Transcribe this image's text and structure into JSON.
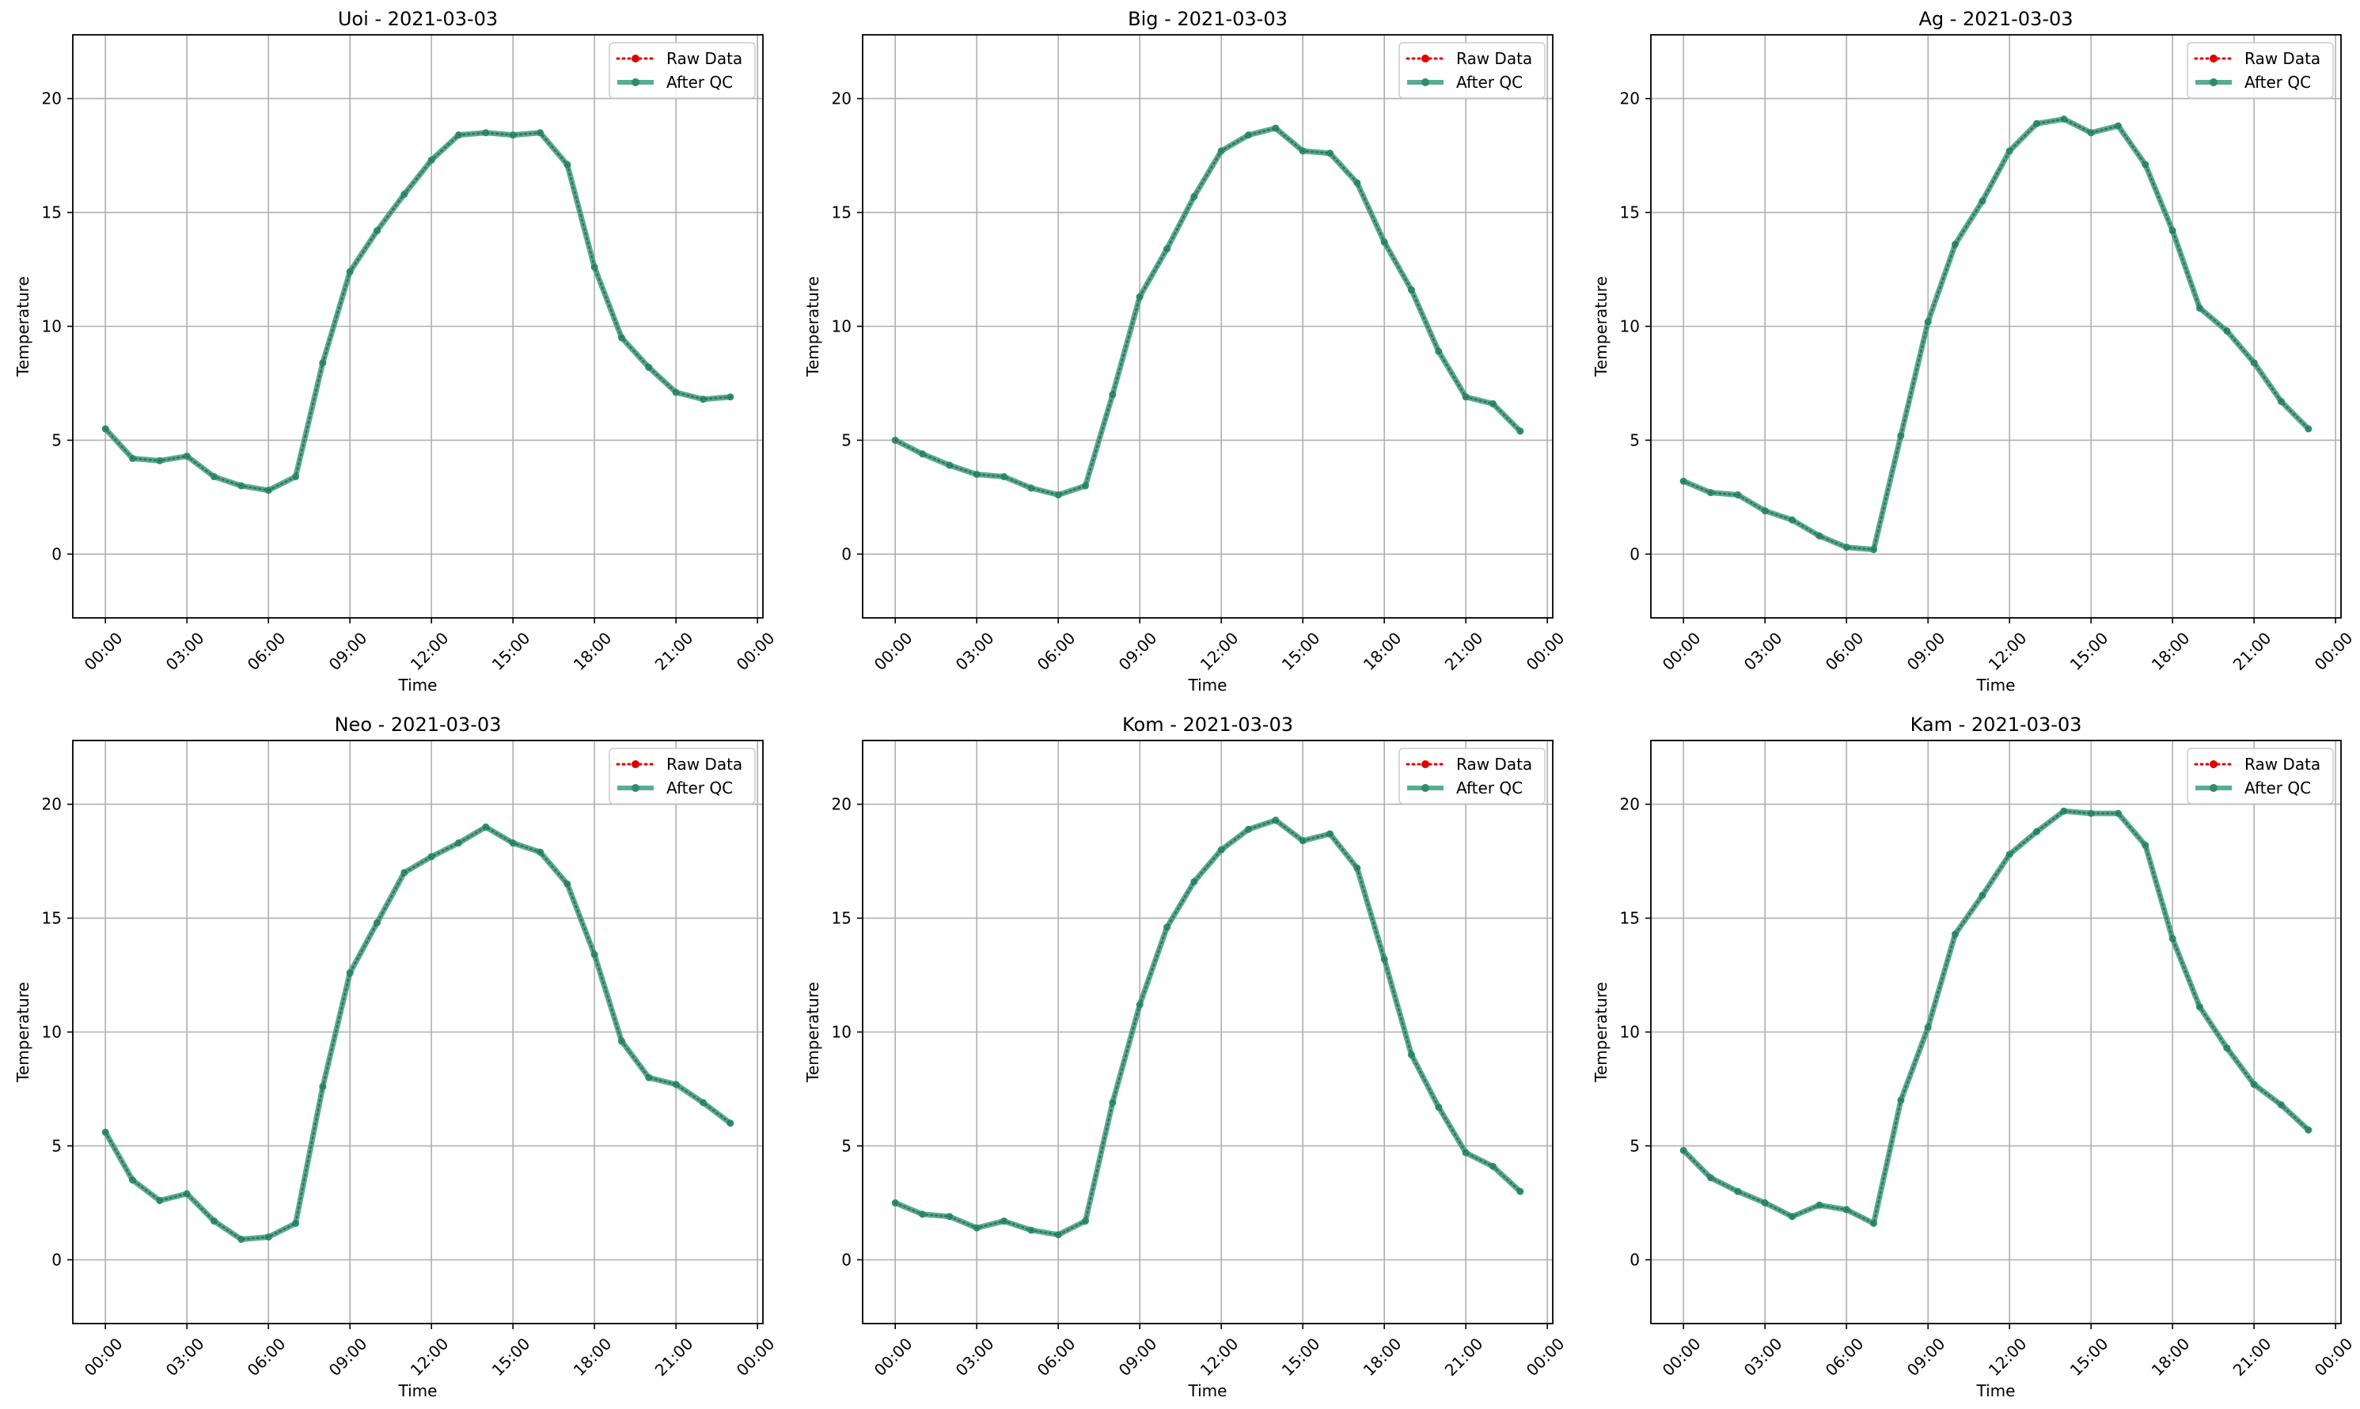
{
  "chart_data": [
    {
      "type": "line",
      "title": "Uoi - 2021-03-03",
      "xlabel": "Time",
      "ylabel": "Temperature",
      "xticks": [
        "00:00",
        "03:00",
        "06:00",
        "09:00",
        "12:00",
        "15:00",
        "18:00",
        "21:00",
        "00:00"
      ],
      "yticks": [
        0,
        5,
        10,
        15,
        20
      ],
      "xlim_hours": [
        -1.2,
        24.2
      ],
      "ylim": [
        -2.8,
        22.8
      ],
      "grid": true,
      "legend": "top-right",
      "x_hours": [
        0,
        1,
        2,
        3,
        4,
        5,
        6,
        7,
        8,
        9,
        10,
        11,
        12,
        13,
        14,
        15,
        16,
        17,
        18,
        19,
        20,
        21,
        22,
        23
      ],
      "series": [
        {
          "name": "Raw Data",
          "style": "dotted-red",
          "values": [
            5.5,
            4.2,
            4.1,
            4.3,
            3.4,
            3.0,
            2.8,
            3.4,
            8.4,
            12.4,
            14.2,
            15.8,
            17.3,
            18.4,
            18.5,
            18.4,
            18.5,
            17.1,
            12.6,
            9.5,
            8.2,
            7.1,
            6.8,
            6.9
          ]
        },
        {
          "name": "After QC",
          "style": "solid-green",
          "values": [
            5.5,
            4.2,
            4.1,
            4.3,
            3.4,
            3.0,
            2.8,
            3.4,
            8.4,
            12.4,
            14.2,
            15.8,
            17.3,
            18.4,
            18.5,
            18.4,
            18.5,
            17.1,
            12.6,
            9.5,
            8.2,
            7.1,
            6.8,
            6.9
          ]
        }
      ]
    },
    {
      "type": "line",
      "title": "Big - 2021-03-03",
      "xlabel": "Time",
      "ylabel": "Temperature",
      "xticks": [
        "00:00",
        "03:00",
        "06:00",
        "09:00",
        "12:00",
        "15:00",
        "18:00",
        "21:00",
        "00:00"
      ],
      "yticks": [
        0,
        5,
        10,
        15,
        20
      ],
      "xlim_hours": [
        -1.2,
        24.2
      ],
      "ylim": [
        -2.8,
        22.8
      ],
      "grid": true,
      "legend": "top-right",
      "x_hours": [
        0,
        1,
        2,
        3,
        4,
        5,
        6,
        7,
        8,
        9,
        10,
        11,
        12,
        13,
        14,
        15,
        16,
        17,
        18,
        19,
        20,
        21,
        22,
        23
      ],
      "series": [
        {
          "name": "Raw Data",
          "style": "dotted-red",
          "values": [
            5.0,
            4.4,
            3.9,
            3.5,
            3.4,
            2.9,
            2.6,
            3.0,
            7.0,
            11.3,
            13.4,
            15.7,
            17.7,
            18.4,
            18.7,
            17.7,
            17.6,
            16.3,
            13.7,
            11.6,
            8.9,
            6.9,
            6.6,
            5.4
          ]
        },
        {
          "name": "After QC",
          "style": "solid-green",
          "values": [
            5.0,
            4.4,
            3.9,
            3.5,
            3.4,
            2.9,
            2.6,
            3.0,
            7.0,
            11.3,
            13.4,
            15.7,
            17.7,
            18.4,
            18.7,
            17.7,
            17.6,
            16.3,
            13.7,
            11.6,
            8.9,
            6.9,
            6.6,
            5.4
          ]
        }
      ]
    },
    {
      "type": "line",
      "title": "Ag - 2021-03-03",
      "xlabel": "Time",
      "ylabel": "Temperature",
      "xticks": [
        "00:00",
        "03:00",
        "06:00",
        "09:00",
        "12:00",
        "15:00",
        "18:00",
        "21:00",
        "00:00"
      ],
      "yticks": [
        0,
        5,
        10,
        15,
        20
      ],
      "xlim_hours": [
        -1.2,
        24.2
      ],
      "ylim": [
        -2.8,
        22.8
      ],
      "grid": true,
      "legend": "top-right",
      "x_hours": [
        0,
        1,
        2,
        3,
        4,
        5,
        6,
        7,
        8,
        9,
        10,
        11,
        12,
        13,
        14,
        15,
        16,
        17,
        18,
        19,
        20,
        21,
        22,
        23
      ],
      "series": [
        {
          "name": "Raw Data",
          "style": "dotted-red",
          "values": [
            3.2,
            2.7,
            2.6,
            1.9,
            1.5,
            0.8,
            0.3,
            0.2,
            5.2,
            10.2,
            13.6,
            15.5,
            17.7,
            18.9,
            19.1,
            18.5,
            18.8,
            17.1,
            14.2,
            10.8,
            9.8,
            8.4,
            6.7,
            5.5
          ]
        },
        {
          "name": "After QC",
          "style": "solid-green",
          "values": [
            3.2,
            2.7,
            2.6,
            1.9,
            1.5,
            0.8,
            0.3,
            0.2,
            5.2,
            10.2,
            13.6,
            15.5,
            17.7,
            18.9,
            19.1,
            18.5,
            18.8,
            17.1,
            14.2,
            10.8,
            9.8,
            8.4,
            6.7,
            5.5
          ]
        }
      ]
    },
    {
      "type": "line",
      "title": "Neo - 2021-03-03",
      "xlabel": "Time",
      "ylabel": "Temperature",
      "xticks": [
        "00:00",
        "03:00",
        "06:00",
        "09:00",
        "12:00",
        "15:00",
        "18:00",
        "21:00",
        "00:00"
      ],
      "yticks": [
        0,
        5,
        10,
        15,
        20
      ],
      "xlim_hours": [
        -1.2,
        24.2
      ],
      "ylim": [
        -2.8,
        22.8
      ],
      "grid": true,
      "legend": "top-right",
      "x_hours": [
        0,
        1,
        2,
        3,
        4,
        5,
        6,
        7,
        8,
        9,
        10,
        11,
        12,
        13,
        14,
        15,
        16,
        17,
        18,
        19,
        20,
        21,
        22,
        23
      ],
      "series": [
        {
          "name": "Raw Data",
          "style": "dotted-red",
          "values": [
            5.6,
            3.5,
            2.6,
            2.9,
            1.7,
            0.9,
            1.0,
            1.6,
            7.6,
            12.6,
            14.8,
            17.0,
            17.7,
            18.3,
            19.0,
            18.3,
            17.9,
            16.5,
            13.4,
            9.6,
            8.0,
            7.7,
            6.9,
            6.0
          ]
        },
        {
          "name": "After QC",
          "style": "solid-green",
          "values": [
            5.6,
            3.5,
            2.6,
            2.9,
            1.7,
            0.9,
            1.0,
            1.6,
            7.6,
            12.6,
            14.8,
            17.0,
            17.7,
            18.3,
            19.0,
            18.3,
            17.9,
            16.5,
            13.4,
            9.6,
            8.0,
            7.7,
            6.9,
            6.0
          ]
        }
      ]
    },
    {
      "type": "line",
      "title": "Kom - 2021-03-03",
      "xlabel": "Time",
      "ylabel": "Temperature",
      "xticks": [
        "00:00",
        "03:00",
        "06:00",
        "09:00",
        "12:00",
        "15:00",
        "18:00",
        "21:00",
        "00:00"
      ],
      "yticks": [
        0,
        5,
        10,
        15,
        20
      ],
      "xlim_hours": [
        -1.2,
        24.2
      ],
      "ylim": [
        -2.8,
        22.8
      ],
      "grid": true,
      "legend": "top-right",
      "x_hours": [
        0,
        1,
        2,
        3,
        4,
        5,
        6,
        7,
        8,
        9,
        10,
        11,
        12,
        13,
        14,
        15,
        16,
        17,
        18,
        19,
        20,
        21,
        22,
        23
      ],
      "series": [
        {
          "name": "Raw Data",
          "style": "dotted-red",
          "values": [
            2.5,
            2.0,
            1.9,
            1.4,
            1.7,
            1.3,
            1.1,
            1.7,
            6.9,
            11.2,
            14.6,
            16.6,
            18.0,
            18.9,
            19.3,
            18.4,
            18.7,
            17.2,
            13.2,
            9.0,
            6.7,
            4.7,
            4.1,
            3.0
          ]
        },
        {
          "name": "After QC",
          "style": "solid-green",
          "values": [
            2.5,
            2.0,
            1.9,
            1.4,
            1.7,
            1.3,
            1.1,
            1.7,
            6.9,
            11.2,
            14.6,
            16.6,
            18.0,
            18.9,
            19.3,
            18.4,
            18.7,
            17.2,
            13.2,
            9.0,
            6.7,
            4.7,
            4.1,
            3.0
          ]
        }
      ]
    },
    {
      "type": "line",
      "title": "Kam - 2021-03-03",
      "xlabel": "Time",
      "ylabel": "Temperature",
      "xticks": [
        "00:00",
        "03:00",
        "06:00",
        "09:00",
        "12:00",
        "15:00",
        "18:00",
        "21:00",
        "00:00"
      ],
      "yticks": [
        0,
        5,
        10,
        15,
        20
      ],
      "xlim_hours": [
        -1.2,
        24.2
      ],
      "ylim": [
        -2.8,
        22.8
      ],
      "grid": true,
      "legend": "top-right",
      "x_hours": [
        0,
        1,
        2,
        3,
        4,
        5,
        6,
        7,
        8,
        9,
        10,
        11,
        12,
        13,
        14,
        15,
        16,
        17,
        18,
        19,
        20,
        21,
        22,
        23
      ],
      "series": [
        {
          "name": "Raw Data",
          "style": "dotted-red",
          "values": [
            4.8,
            3.6,
            3.0,
            2.5,
            1.9,
            2.4,
            2.2,
            1.6,
            7.0,
            10.2,
            14.3,
            16.0,
            17.8,
            18.8,
            19.7,
            19.6,
            19.6,
            18.2,
            14.1,
            11.1,
            9.3,
            7.7,
            6.8,
            5.7
          ]
        },
        {
          "name": "After QC",
          "style": "solid-green",
          "values": [
            4.8,
            3.6,
            3.0,
            2.5,
            1.9,
            2.4,
            2.2,
            1.6,
            7.0,
            10.2,
            14.3,
            16.0,
            17.8,
            18.8,
            19.7,
            19.6,
            19.6,
            18.2,
            14.1,
            11.1,
            9.3,
            7.7,
            6.8,
            5.7
          ]
        }
      ]
    }
  ],
  "colors": {
    "raw": "#e00000",
    "qc": "#2e8b6e",
    "qc_line": "#3aa07f",
    "grid": "#b0b0b0",
    "axes": "#000000",
    "legend_border": "#cccccc"
  }
}
